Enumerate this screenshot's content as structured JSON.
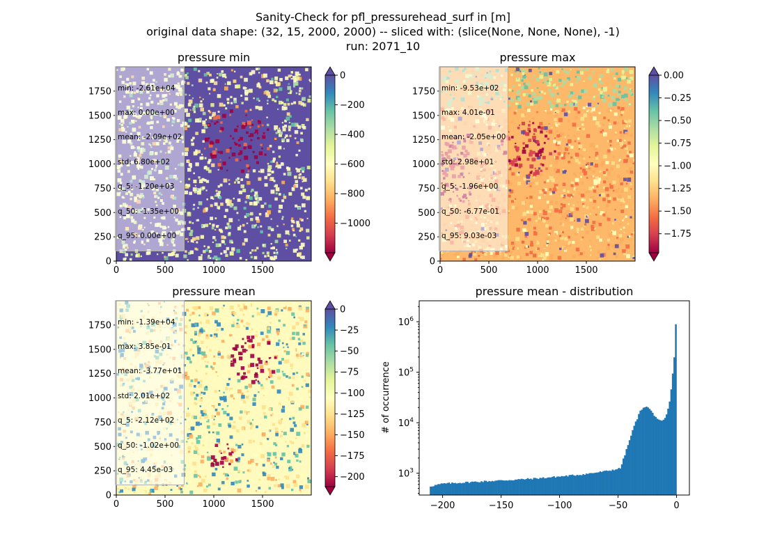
{
  "figure": {
    "title_lines": [
      "Sanity-Check for pfl_pressurehead_surf in [m]",
      "original data shape: (32, 15, 2000, 2000) -- sliced with: (slice(None, None, None), -1)",
      "run: 2071_10"
    ]
  },
  "colors": {
    "spectral": [
      "#9e0142",
      "#d53e4f",
      "#f46d43",
      "#fdae61",
      "#fee08b",
      "#ffffbf",
      "#e6f598",
      "#abdda4",
      "#66c2a5",
      "#3288bd",
      "#5e4fa2"
    ],
    "hist_bar": "#1f77b4"
  },
  "chart_data": [
    {
      "type": "heatmap",
      "title": "pressure min",
      "x_ticks": [
        0,
        500,
        1000,
        1500
      ],
      "y_ticks": [
        0,
        250,
        500,
        750,
        1000,
        1250,
        1500,
        1750
      ],
      "xlim": [
        0,
        2000
      ],
      "ylim": [
        0,
        2000
      ],
      "colorbar": {
        "vmin": -1200,
        "vmax": 0,
        "ticks": [
          0,
          -200,
          -400,
          -600,
          -800,
          -1000
        ],
        "extend": "both"
      },
      "dominant_value": 0,
      "stats": [
        "min: -2.61e+04",
        "max: 0.00e+00",
        "mean: -2.09e+02",
        "std: 6.80e+02",
        "q_5: -1.20e+03",
        "q_50: -1.35e+00",
        "q_95: 0.00e+00"
      ]
    },
    {
      "type": "heatmap",
      "title": "pressure max",
      "x_ticks": [
        0,
        500,
        1000,
        1500
      ],
      "y_ticks": [
        0,
        250,
        500,
        750,
        1000,
        1250,
        1500,
        1750
      ],
      "xlim": [
        0,
        2000
      ],
      "ylim": [
        0,
        2000
      ],
      "colorbar": {
        "vmin": -1.96,
        "vmax": 0.0,
        "ticks": [
          "0.00",
          "−0.25",
          "−0.50",
          "−0.75",
          "−1.00",
          "−1.25",
          "−1.50",
          "−1.75"
        ],
        "tick_values": [
          0,
          -0.25,
          -0.5,
          -0.75,
          -1.0,
          -1.25,
          -1.5,
          -1.75
        ],
        "extend": "both"
      },
      "dominant_value": -0.4,
      "stats": [
        "min: -9.53e+02",
        "max: 4.01e-01",
        "mean: -2.05e+00",
        "std: 2.98e+01",
        "q_5: -1.96e+00",
        "q_50: -6.77e-01",
        "q_95: 9.03e-03"
      ]
    },
    {
      "type": "heatmap",
      "title": "pressure mean",
      "x_ticks": [
        0,
        500,
        1000,
        1500
      ],
      "y_ticks": [
        0,
        250,
        500,
        750,
        1000,
        1250,
        1500,
        1750
      ],
      "xlim": [
        0,
        2000
      ],
      "ylim": [
        0,
        2000
      ],
      "colorbar": {
        "vmin": -212,
        "vmax": 0,
        "ticks": [
          0,
          -25,
          -50,
          -75,
          -100,
          -125,
          -150,
          -175,
          -200
        ],
        "extend": "both"
      },
      "dominant_value": -1,
      "stats": [
        "min: -1.39e+04",
        "max: 3.85e-01",
        "mean: -3.77e+01",
        "std: 2.01e+02",
        "q_5: -2.12e+02",
        "q_50: -1.02e+00",
        "q_95: 4.45e-03"
      ]
    },
    {
      "type": "bar",
      "title": "pressure mean - distribution",
      "ylabel": "# of occurrence",
      "x_ticks": [
        -200,
        -150,
        -100,
        -50,
        0
      ],
      "xlim": [
        -220,
        11
      ],
      "y_scale": "log",
      "ylim": [
        370,
        2600000
      ],
      "y_ticks": [
        1000,
        10000,
        100000,
        1000000
      ],
      "bin_range": [
        -211,
        0
      ],
      "bin_count": 160,
      "profile": [
        [
          -211,
          550
        ],
        [
          -200,
          620
        ],
        [
          -180,
          660
        ],
        [
          -160,
          700
        ],
        [
          -140,
          740
        ],
        [
          -120,
          790
        ],
        [
          -100,
          860
        ],
        [
          -80,
          950
        ],
        [
          -60,
          1100
        ],
        [
          -48,
          1250
        ],
        [
          -36,
          9000
        ],
        [
          -31,
          17000
        ],
        [
          -28,
          21000
        ],
        [
          -24,
          20000
        ],
        [
          -20,
          15000
        ],
        [
          -15,
          11000
        ],
        [
          -12,
          10500
        ],
        [
          -9,
          13000
        ],
        [
          -6,
          25000
        ],
        [
          -4,
          60000
        ],
        [
          -2,
          200000
        ],
        [
          -1,
          600000
        ],
        [
          0,
          1800000
        ]
      ]
    }
  ]
}
